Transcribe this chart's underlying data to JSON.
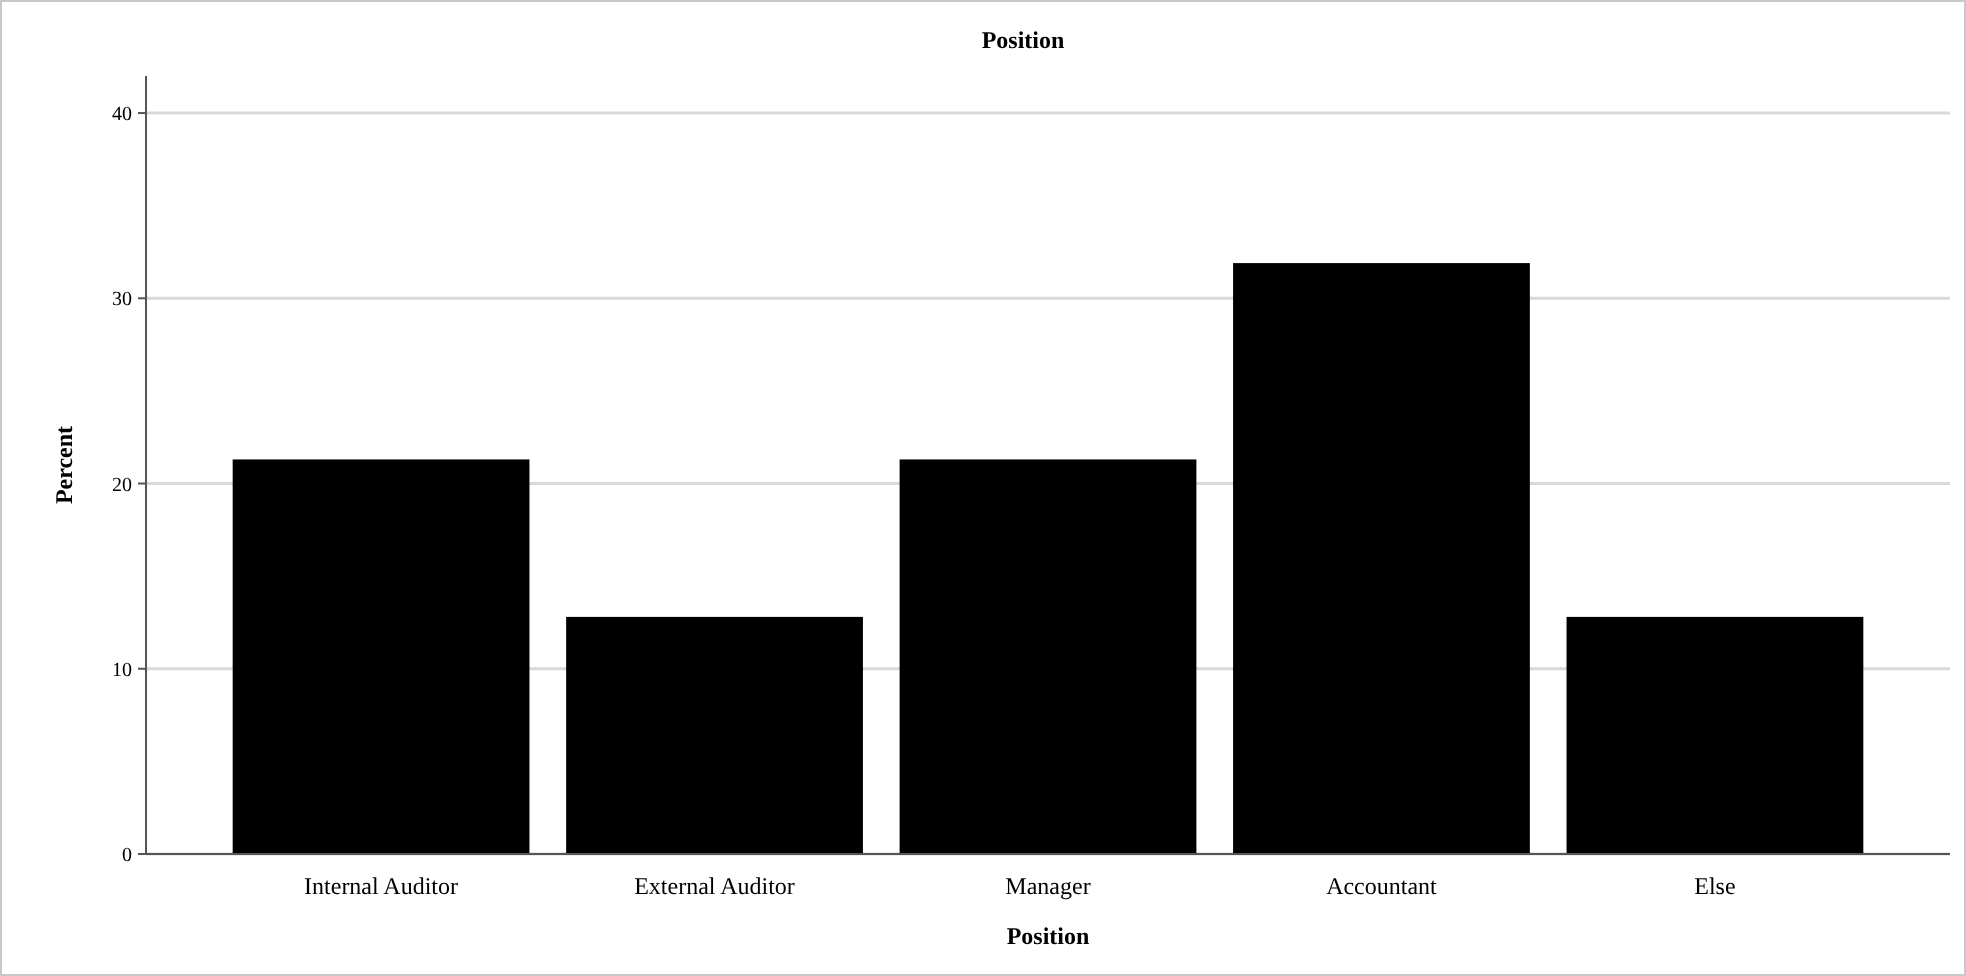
{
  "chart_data": {
    "type": "bar",
    "title": "Position",
    "xlabel": "Position",
    "ylabel": "Percent",
    "categories": [
      "Internal Auditor",
      "External Auditor",
      "Manager",
      "Accountant",
      "Else"
    ],
    "values": [
      21.3,
      12.8,
      21.3,
      31.9,
      12.8
    ],
    "color": "#000000",
    "ylim": [
      0,
      42
    ],
    "yticks": [
      0,
      10,
      20,
      30,
      40
    ],
    "grid": "y"
  }
}
